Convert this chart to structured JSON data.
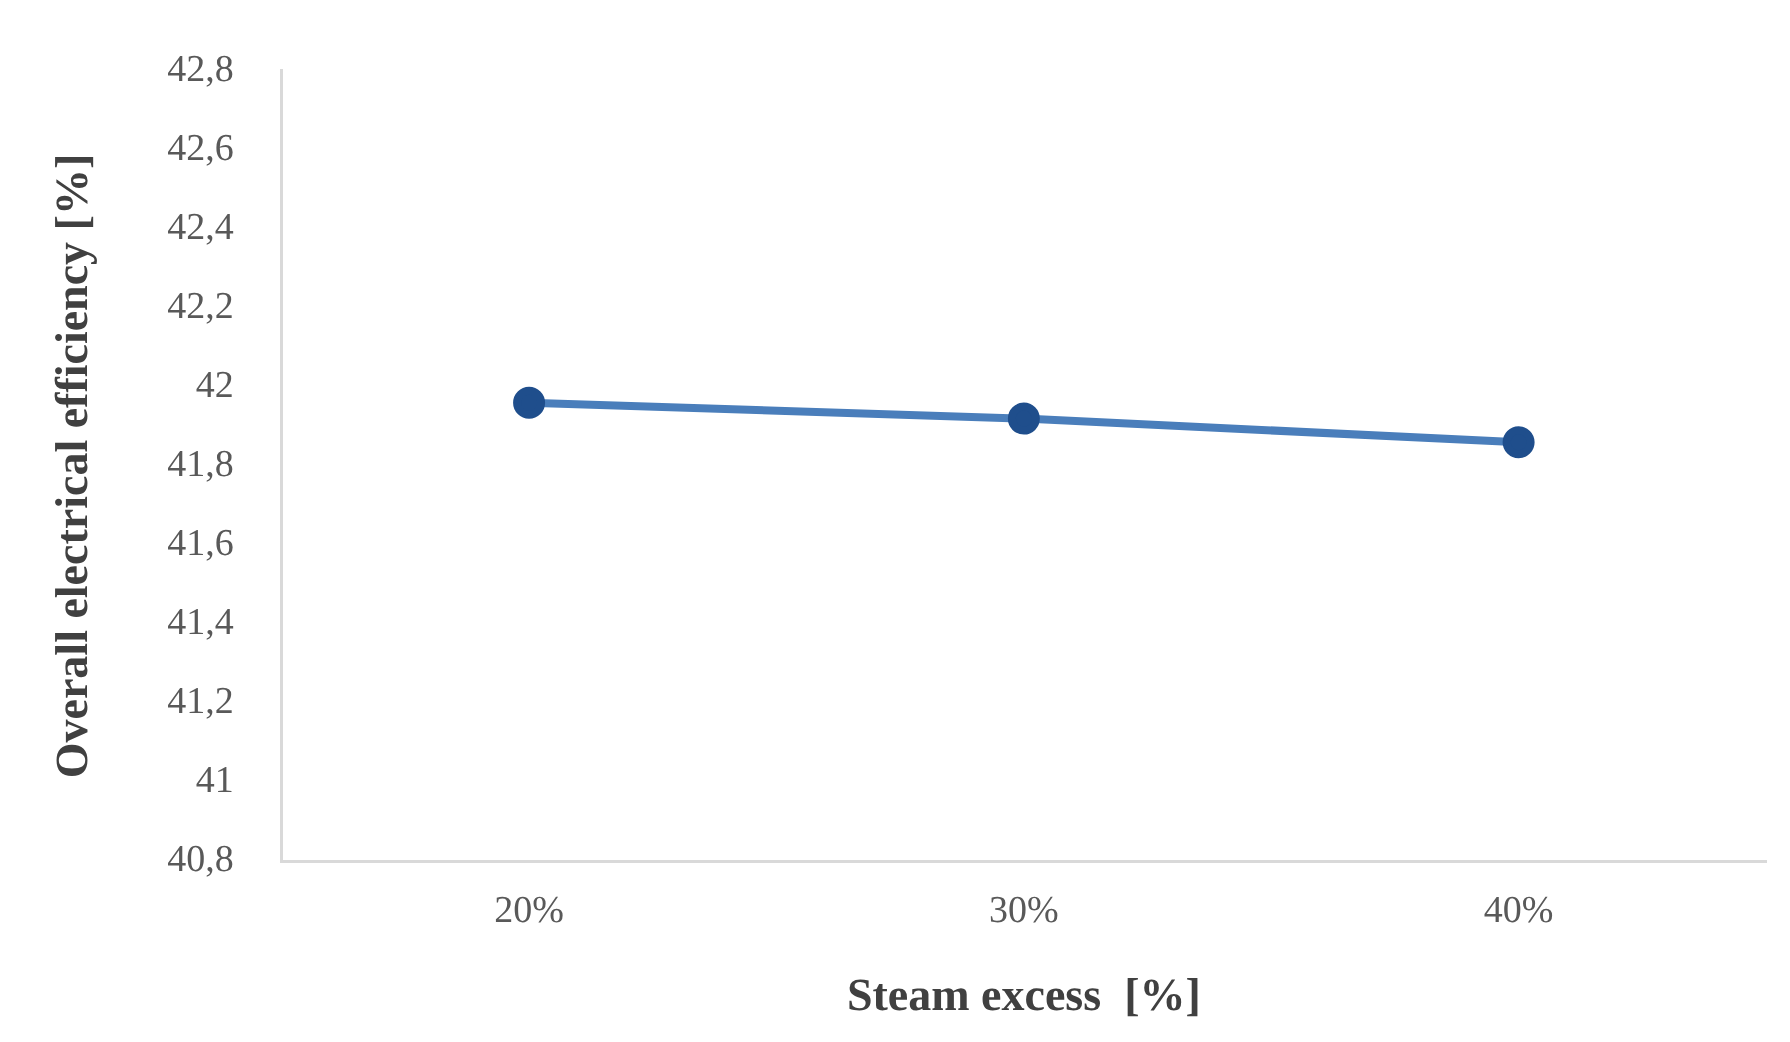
{
  "chart_data": {
    "type": "line",
    "xlabel": "Steam excess  [%]",
    "ylabel": "Overall electrical efficiency [%]",
    "categories": [
      "20%",
      "30%",
      "40%"
    ],
    "series": [
      {
        "color": "#4a7ebb",
        "values": [
          41.96,
          41.92,
          41.86
        ]
      }
    ],
    "ylim": [
      40.8,
      42.8
    ],
    "yticks": [
      {
        "value": 40.8,
        "label": "40,8"
      },
      41,
      {
        "value": 41.2,
        "label": "41,2"
      },
      {
        "value": 41.4,
        "label": "41,4"
      },
      {
        "value": 41.6,
        "label": "41,6"
      },
      {
        "value": 41.8,
        "label": "41,8"
      },
      42,
      {
        "value": 42.2,
        "label": "42,2"
      },
      {
        "value": 42.4,
        "label": "42,4"
      },
      {
        "value": 42.6,
        "label": "42,6"
      },
      {
        "value": 42.8,
        "label": "42,8"
      }
    ],
    "grid": false,
    "legend": false,
    "marker": "circle",
    "line_style": "solid"
  }
}
